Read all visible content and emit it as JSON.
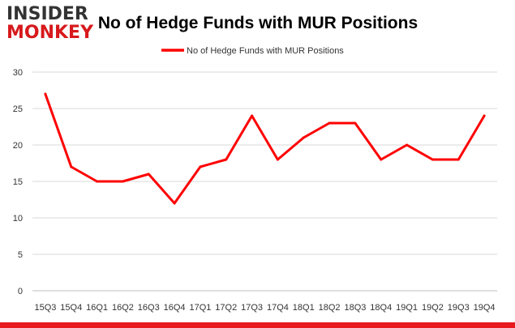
{
  "logo": {
    "line1": "INSIDER",
    "line2": "MONKEY",
    "color_dark": "#333333",
    "color_accent": "#d7191c"
  },
  "chart_data": {
    "type": "line",
    "title": "No of Hedge Funds with MUR Positions",
    "categories": [
      "15Q3",
      "15Q4",
      "16Q1",
      "16Q2",
      "16Q3",
      "16Q4",
      "17Q1",
      "17Q2",
      "17Q3",
      "17Q4",
      "18Q1",
      "18Q2",
      "18Q3",
      "18Q4",
      "19Q1",
      "19Q2",
      "19Q3",
      "19Q4"
    ],
    "series": [
      {
        "name": "No of Hedge Funds with MUR Positions",
        "color": "#ff0000",
        "values": [
          27,
          17,
          15,
          15,
          16,
          12,
          17,
          18,
          24,
          18,
          21,
          23,
          23,
          18,
          20,
          18,
          18,
          24
        ]
      }
    ],
    "ylim": [
      0,
      30
    ],
    "yticks": [
      0,
      5,
      10,
      15,
      20,
      25,
      30
    ],
    "grid": true,
    "legend_position": "top-center",
    "xlabel": "",
    "ylabel": ""
  },
  "footer_bar_color": "#e8191f"
}
